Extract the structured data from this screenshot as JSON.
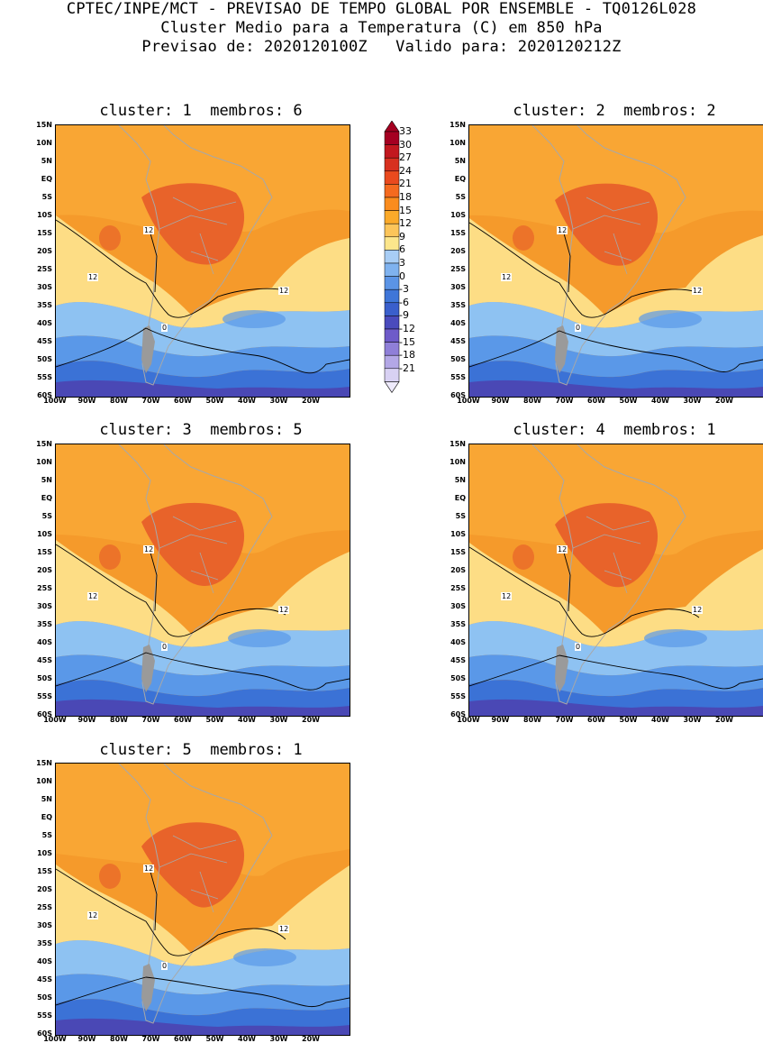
{
  "header": {
    "line1": "CPTEC/INPE/MCT - PREVISAO DE TEMPO GLOBAL POR ENSEMBLE - TQ0126L028",
    "line2": "Cluster Medio para a Temperatura (C) em 850 hPa",
    "line3": "Previsao de: 2020120100Z   Valido para: 2020120212Z"
  },
  "panels": [
    {
      "title": "cluster: 1  membros: 6"
    },
    {
      "title": "cluster: 2  membros: 2"
    },
    {
      "title": "cluster: 3  membros: 5"
    },
    {
      "title": "cluster: 4  membros: 1"
    },
    {
      "title": "cluster: 5  membros: 1"
    }
  ],
  "lat_labels": [
    "15N",
    "10N",
    "5N",
    "EQ",
    "5S",
    "10S",
    "15S",
    "20S",
    "25S",
    "30S",
    "35S",
    "40S",
    "45S",
    "50S",
    "55S",
    "60S"
  ],
  "lon_labels": [
    "100W",
    "90W",
    "80W",
    "70W",
    "60W",
    "50W",
    "40W",
    "30W",
    "20W"
  ],
  "contour_labels": {
    "twelve": "12",
    "zero": "0"
  },
  "legend": {
    "levels": [
      "33",
      "30",
      "27",
      "24",
      "21",
      "18",
      "15",
      "12",
      "9",
      "6",
      "3",
      "0",
      "-3",
      "-6",
      "-9",
      "-12",
      "-15",
      "-18",
      "-21"
    ],
    "colors": [
      "#a50021",
      "#c2181f",
      "#d7301f",
      "#ea4a1e",
      "#f56a1f",
      "#fa8c1e",
      "#fbaa2a",
      "#fcc55a",
      "#fce68c",
      "#a8cdf5",
      "#7fb2ef",
      "#5b94e6",
      "#3f76d8",
      "#3a5fcc",
      "#4a4bbd",
      "#6e5bc9",
      "#8f7fd8",
      "#b3a7e6",
      "#d8d1f3"
    ]
  },
  "colors": {
    "band_hot": "#e8632a",
    "band_warm": "#f59a2b",
    "band_mid": "#fbb13c",
    "band_light": "#fddd85",
    "band_cool1": "#8ec2f2",
    "band_cool2": "#5a98e8",
    "band_cool3": "#3b72d6",
    "band_cold": "#4a48b5",
    "land_border": "#a8a8a8"
  }
}
